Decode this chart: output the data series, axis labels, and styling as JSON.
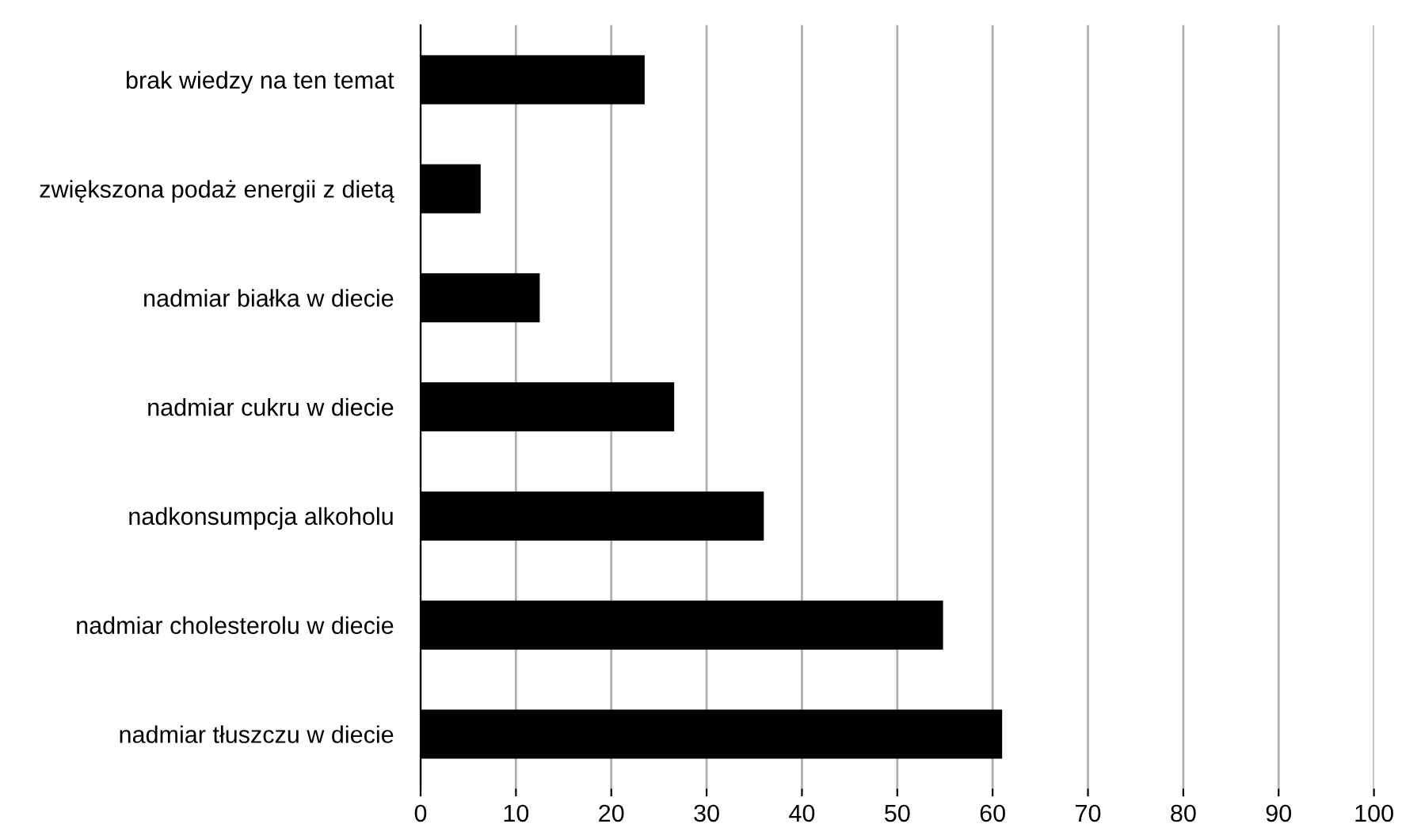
{
  "chart_data": {
    "type": "bar",
    "orientation": "horizontal",
    "categories": [
      "brak wiedzy na ten temat",
      "zwiększona podaż energii z dietą",
      "nadmiar białka w diecie",
      "nadmiar cukru w diecie",
      "nadkonsumpcja alkoholu",
      "nadmiar cholesterolu w diecie",
      "nadmiar tłuszczu w diecie"
    ],
    "values": [
      23.5,
      6.3,
      12.5,
      26.6,
      36,
      54.8,
      61
    ],
    "color": "#000000",
    "xlim": [
      0,
      100
    ],
    "xticks": [
      0,
      10,
      20,
      30,
      40,
      50,
      60,
      70,
      80,
      90,
      100
    ],
    "grid": "x",
    "legend": false
  }
}
